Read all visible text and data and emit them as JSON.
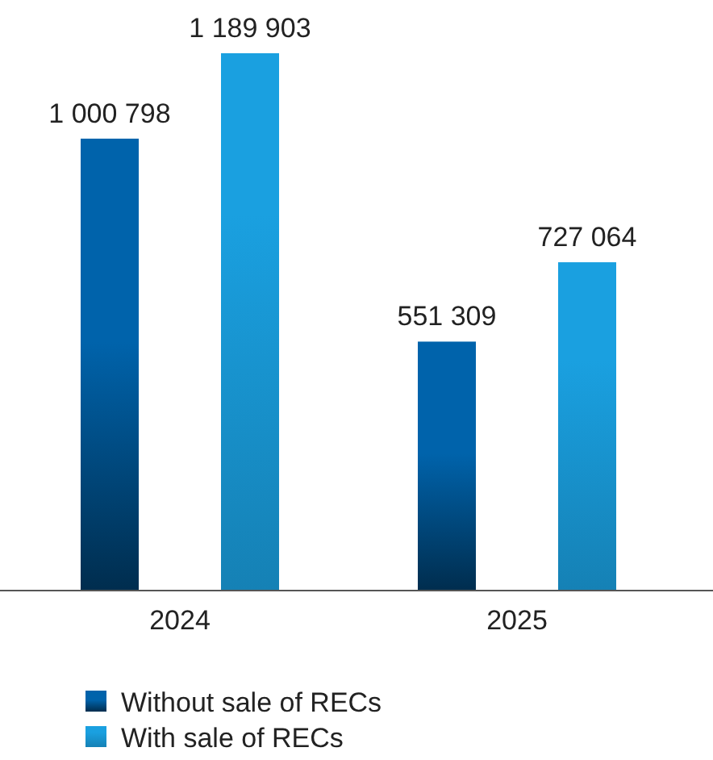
{
  "chart_data": {
    "type": "bar",
    "categories": [
      "2024",
      "2025"
    ],
    "series": [
      {
        "name": "Without sale of RECs",
        "color": "#0063ab",
        "values": [
          1000798,
          551309
        ],
        "value_labels": [
          "1 000 798",
          "551 309"
        ]
      },
      {
        "name": "With sale of RECs",
        "color": "#1aa0e0",
        "values": [
          1189903,
          727064
        ],
        "value_labels": [
          "1 189 903",
          "727 064"
        ]
      }
    ],
    "legend": "bottom left"
  }
}
